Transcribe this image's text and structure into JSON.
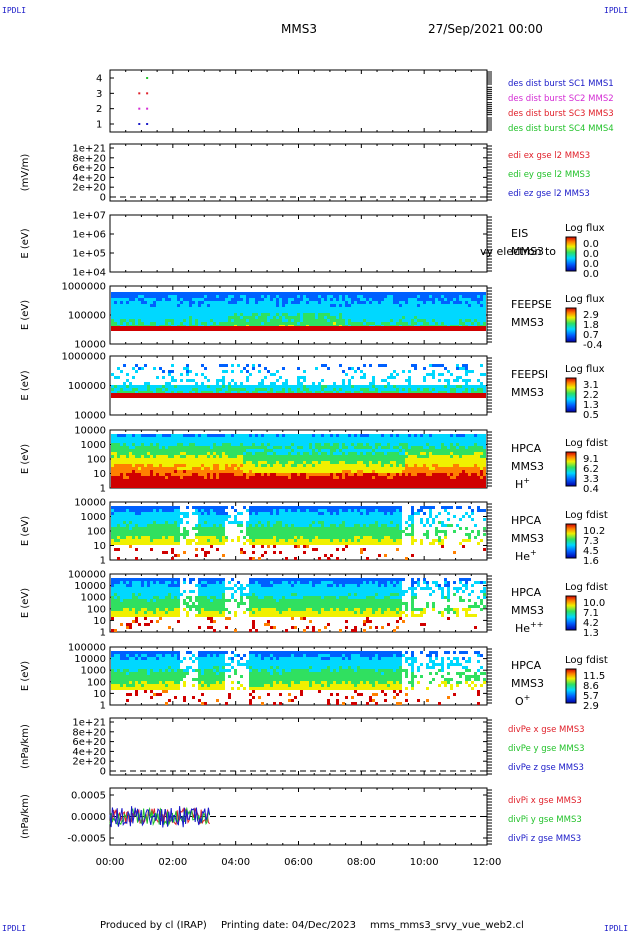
{
  "corner_label": "IPDLI",
  "header": {
    "spacecraft": "MMS3",
    "datetime": "27/Sep/2021 00:00"
  },
  "footer": {
    "produced_by": "Produced by cl (IRAP)",
    "printing_date": "Printing date: 04/Dec/2023",
    "filename": "mms_mms3_srvy_vue_web2.cl"
  },
  "x_axis": {
    "labels": [
      "00:00",
      "02:00",
      "04:00",
      "06:00",
      "08:00",
      "10:00",
      "12:00"
    ],
    "range_hours": [
      0,
      12
    ]
  },
  "colors": {
    "red": "#e0202a",
    "green": "#22c22a",
    "blue": "#1a1ac8",
    "magenta": "#d42cd4",
    "dashed": "#000000"
  },
  "legend_note": "vy electron to",
  "chart_data": [
    {
      "type": "scatter",
      "panel": "burst",
      "yticks": [
        "1",
        "2",
        "3",
        "4"
      ],
      "ylim": [
        0.5,
        4.5
      ],
      "series": [
        {
          "name": "des dist burst SC1 MMS1",
          "color": "#1a1ac8",
          "y": 1,
          "x_hours": [
            0.9,
            1.15
          ]
        },
        {
          "name": "des dist burst SC2 MMS2",
          "color": "#d42cd4",
          "y": 2,
          "x_hours": [
            0.9,
            1.15
          ]
        },
        {
          "name": "des dist burst SC3 MMS3",
          "color": "#e0202a",
          "y": 3,
          "x_hours": [
            0.9,
            1.15
          ]
        },
        {
          "name": "des dist burst SC4 MMS4",
          "color": "#22c22a",
          "y": 4,
          "x_hours": [
            1.15
          ]
        }
      ]
    },
    {
      "type": "line",
      "panel": "edi",
      "ylabel": "(mV/m)",
      "yticks": [
        "1e+21",
        "8e+20",
        "6e+20",
        "4e+20",
        "2e+20",
        "0"
      ],
      "series": [
        {
          "name": "edi ex gse l2 MMS3",
          "color": "#e0202a"
        },
        {
          "name": "edi ey gse l2 MMS3",
          "color": "#22c22a"
        },
        {
          "name": "edi ez gse l2 MMS3",
          "color": "#1a1ac8"
        }
      ]
    },
    {
      "type": "heatmap",
      "panel": "eis",
      "ylabel": "E (eV)",
      "yticks": [
        "1e+07",
        "1e+06",
        "1e+05",
        "1e+04"
      ],
      "instrument": "EIS",
      "spacecraft": "MMS3",
      "colorbar_title": "Log flux",
      "colorbar_ticks": [
        "0.0",
        "0.0",
        "0.0",
        "0.0"
      ]
    },
    {
      "type": "heatmap",
      "panel": "feepse",
      "ylabel": "E (eV)",
      "yticks": [
        "1000000",
        "100000",
        "10000"
      ],
      "instrument": "FEEPSE",
      "spacecraft": "MMS3",
      "colorbar_title": "Log flux",
      "colorbar_ticks": [
        "2.9",
        "1.8",
        "0.7",
        "-0.4"
      ]
    },
    {
      "type": "heatmap",
      "panel": "feepsi",
      "ylabel": "E (eV)",
      "yticks": [
        "1000000",
        "100000",
        "10000"
      ],
      "instrument": "FEEPSI",
      "spacecraft": "MMS3",
      "colorbar_title": "Log flux",
      "colorbar_ticks": [
        "3.1",
        "2.2",
        "1.3",
        "0.5"
      ]
    },
    {
      "type": "heatmap",
      "panel": "hpca_h",
      "ylabel": "E (eV)",
      "yticks": [
        "10000",
        "1000",
        "100",
        "10",
        "1"
      ],
      "instrument": "HPCA",
      "spacecraft": "MMS3",
      "species": "H",
      "charge": "+",
      "colorbar_title": "Log fdist",
      "colorbar_ticks": [
        "9.1",
        "6.2",
        "3.3",
        "0.4"
      ]
    },
    {
      "type": "heatmap",
      "panel": "hpca_he",
      "ylabel": "E (eV)",
      "yticks": [
        "10000",
        "1000",
        "100",
        "10",
        "1"
      ],
      "instrument": "HPCA",
      "spacecraft": "MMS3",
      "species": "He",
      "charge": "+",
      "colorbar_title": "Log fdist",
      "colorbar_ticks": [
        "10.2",
        "7.3",
        "4.5",
        "1.6"
      ]
    },
    {
      "type": "heatmap",
      "panel": "hpca_hepp",
      "ylabel": "E (eV)",
      "yticks": [
        "100000",
        "10000",
        "1000",
        "100",
        "10",
        "1"
      ],
      "instrument": "HPCA",
      "spacecraft": "MMS3",
      "species": "He",
      "charge": "++",
      "colorbar_title": "Log fdist",
      "colorbar_ticks": [
        "10.0",
        "7.1",
        "4.2",
        "1.3"
      ]
    },
    {
      "type": "heatmap",
      "panel": "hpca_o",
      "ylabel": "E (eV)",
      "yticks": [
        "100000",
        "10000",
        "1000",
        "100",
        "10",
        "1"
      ],
      "instrument": "HPCA",
      "spacecraft": "MMS3",
      "species": "O",
      "charge": "+",
      "colorbar_title": "Log fdist",
      "colorbar_ticks": [
        "11.5",
        "8.6",
        "5.7",
        "2.9"
      ]
    },
    {
      "type": "line",
      "panel": "divpe",
      "ylabel": "(nPa/km)",
      "yticks": [
        "1e+21",
        "8e+20",
        "6e+20",
        "4e+20",
        "2e+20",
        "0"
      ],
      "series": [
        {
          "name": "divPe x gse MMS3",
          "color": "#e0202a"
        },
        {
          "name": "divPe y gse MMS3",
          "color": "#22c22a"
        },
        {
          "name": "divPe z gse MMS3",
          "color": "#1a1ac8"
        }
      ]
    },
    {
      "type": "line",
      "panel": "divpi",
      "ylabel": "(nPa/km)",
      "yticks": [
        "0.0005",
        "0.0000",
        "-0.0005"
      ],
      "ylim": [
        -0.0008,
        0.0008
      ],
      "data_extent_hours": [
        0,
        3.2
      ],
      "series": [
        {
          "name": "divPi x gse MMS3",
          "color": "#e0202a"
        },
        {
          "name": "divPi y gse MMS3",
          "color": "#22c22a"
        },
        {
          "name": "divPi z gse MMS3",
          "color": "#1a1ac8"
        }
      ]
    }
  ]
}
